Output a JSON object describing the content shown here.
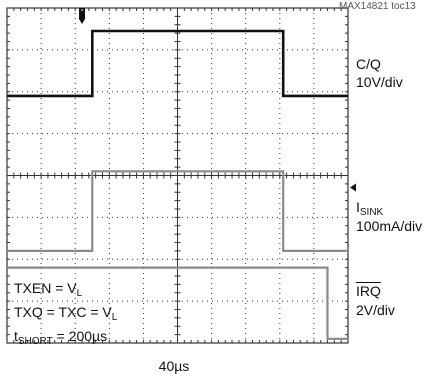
{
  "figure_id": "MAX14821 toc13",
  "colors": {
    "trace_dark": "#111111",
    "trace_gray": "#8a8a8a",
    "grid": "#333333"
  },
  "channels": {
    "cq": {
      "name": "C/Q",
      "scale": "10V/div"
    },
    "isink": {
      "name_main": "I",
      "name_sub": "SINK",
      "scale": "100mA/div"
    },
    "irq": {
      "name": "IRQ",
      "scale": "2V/div"
    }
  },
  "conditions": {
    "line1_main": "TXEN = V",
    "line1_sub": "L",
    "line2_main": "TXQ = TXC = V",
    "line2_sub": "L",
    "line3_pre": "t",
    "line3_sub": "SHORT",
    "line3_post": " = 200µs"
  },
  "timebase": "40µs",
  "chart_data": {
    "type": "line",
    "title": "",
    "xlabel": "40µs",
    "x_unit": "div",
    "xlim": [
      0,
      10
    ],
    "ylim": [
      -4,
      4
    ],
    "grid": true,
    "series": [
      {
        "name": "C/Q",
        "scale": "10V/div",
        "x": [
          0,
          2.5,
          2.5,
          8.1,
          8.1,
          10
        ],
        "y": [
          1.9,
          1.9,
          3.45,
          3.45,
          1.9,
          1.9
        ]
      },
      {
        "name": "ISINK",
        "scale": "100mA/div",
        "x": [
          0,
          2.5,
          2.5,
          8.1,
          8.1,
          10
        ],
        "y": [
          -1.8,
          -1.8,
          0.1,
          0.1,
          -1.8,
          -1.8
        ]
      },
      {
        "name": "IRQ",
        "scale": "2V/div",
        "x": [
          0,
          9.4,
          9.4,
          10
        ],
        "y": [
          -2.2,
          -2.2,
          -3.9,
          -3.9
        ]
      }
    ],
    "markers": [
      {
        "type": "trigger",
        "x": 2.2,
        "position": "top"
      },
      {
        "type": "reference",
        "position": "right",
        "y": 0
      }
    ]
  }
}
